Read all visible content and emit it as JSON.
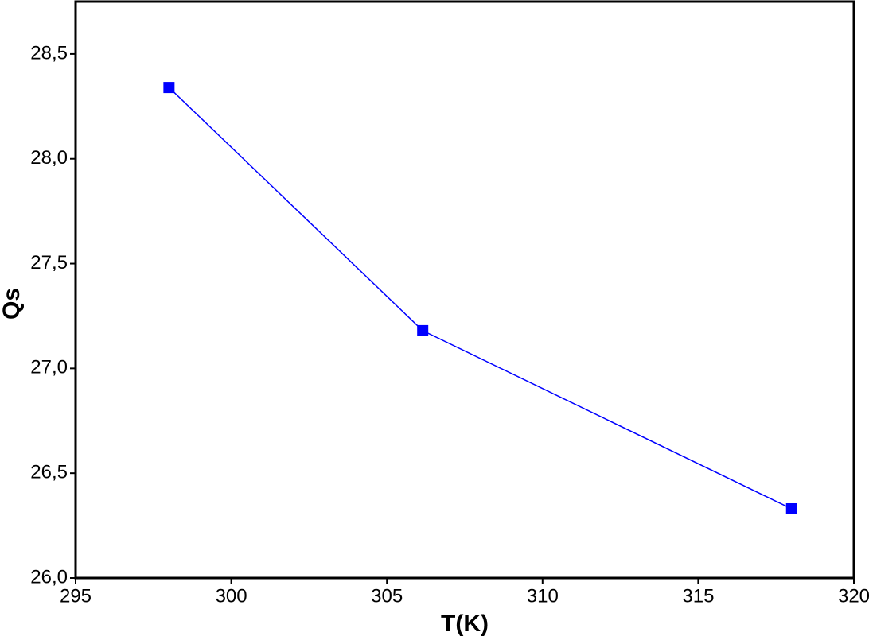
{
  "chart_data": {
    "type": "line",
    "x_label": "T(K)",
    "y_label": "Qs",
    "xlim": [
      295,
      320
    ],
    "xticks": [
      295,
      300,
      305,
      310,
      315,
      320
    ],
    "ylim": [
      26.0,
      28.75
    ],
    "yticks": [
      {
        "value": 26.0,
        "label": "26,0"
      },
      {
        "value": 26.5,
        "label": "26,5"
      },
      {
        "value": 27.0,
        "label": "27,0"
      },
      {
        "value": 27.5,
        "label": "27,5"
      },
      {
        "value": 28.0,
        "label": "28,0"
      },
      {
        "value": 28.5,
        "label": "28,5"
      }
    ],
    "grid": false,
    "x": [
      298,
      306.15,
      318
    ],
    "series": [
      {
        "color": "#0000ff",
        "values": [
          28.34,
          27.18,
          26.33
        ]
      }
    ]
  }
}
